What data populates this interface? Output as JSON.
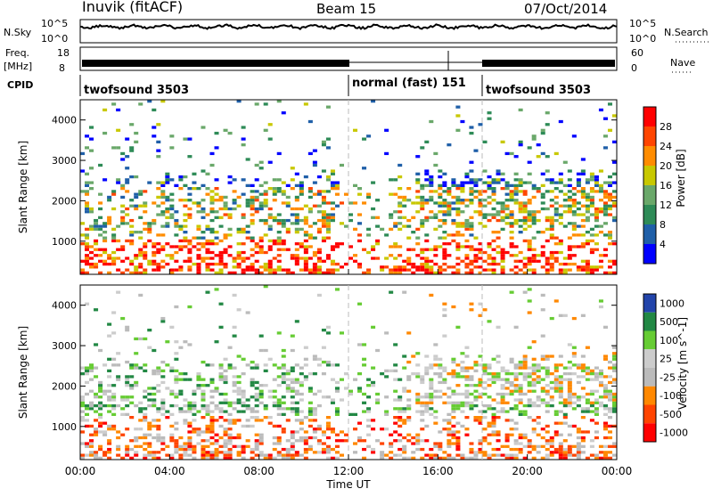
{
  "header": {
    "station": "Inuvik (fitACF)",
    "beam": "Beam 15",
    "date": "07/Oct/2014"
  },
  "left_labels": {
    "nsky": "N.Sky",
    "nsky_top": "10^5",
    "nsky_bottom": "10^0",
    "freq": "Freq.",
    "freq_unit": "[MHz]",
    "freq_top": "18",
    "freq_bottom": "8",
    "cpid": "CPID"
  },
  "right_labels": {
    "nsearch_top": "10^5",
    "nsearch_bottom": "10^0",
    "nsearch": "N.Search",
    "nave_top": "60",
    "nave_bottom": "0",
    "nave": "Nave"
  },
  "colors": {
    "power": [
      "#0000ff",
      "#1f5fa8",
      "#2e8b57",
      "#6aa86a",
      "#c8c800",
      "#ff8c00",
      "#ff4500",
      "#ff0000"
    ],
    "velocity": [
      "#ff0000",
      "#ff4400",
      "#ff8800",
      "#bbbbbb",
      "#cccccc",
      "#66cc33",
      "#228844",
      "#2244aa"
    ]
  },
  "chart_data": [
    {
      "type": "heatmap",
      "ylabel": "Slant Range [km]",
      "ylim": [
        180,
        4500
      ],
      "yticks": [
        "1000",
        "2000",
        "3000",
        "4000"
      ],
      "colorbar_label": "Power [dB]",
      "colorbar_ticks": [
        "4",
        "8",
        "12",
        "16",
        "20",
        "24",
        "28"
      ],
      "xlim": [
        0,
        24
      ]
    },
    {
      "type": "heatmap",
      "ylabel": "Slant Range [km]",
      "ylim": [
        180,
        4500
      ],
      "yticks": [
        "1000",
        "2000",
        "3000",
        "4000"
      ],
      "colorbar_label": "Velocity [m s^-1]",
      "colorbar_ticks": [
        "1000",
        "500",
        "100",
        "25",
        "-25",
        "-100",
        "-500",
        "-1000"
      ],
      "xlabel": "Time UT",
      "xticks": [
        "00:00",
        "04:00",
        "08:00",
        "12:00",
        "16:00",
        "20:00",
        "00:00"
      ],
      "xlim": [
        0,
        24
      ]
    },
    {
      "type": "table",
      "title": "CPID",
      "segments": [
        {
          "label": "twofsound 3503",
          "start": 0,
          "end": 12
        },
        {
          "label": "normal (fast) 151",
          "start": 12,
          "end": 18
        },
        {
          "label": "twofsound 3503",
          "start": 18,
          "end": 24
        }
      ]
    }
  ]
}
